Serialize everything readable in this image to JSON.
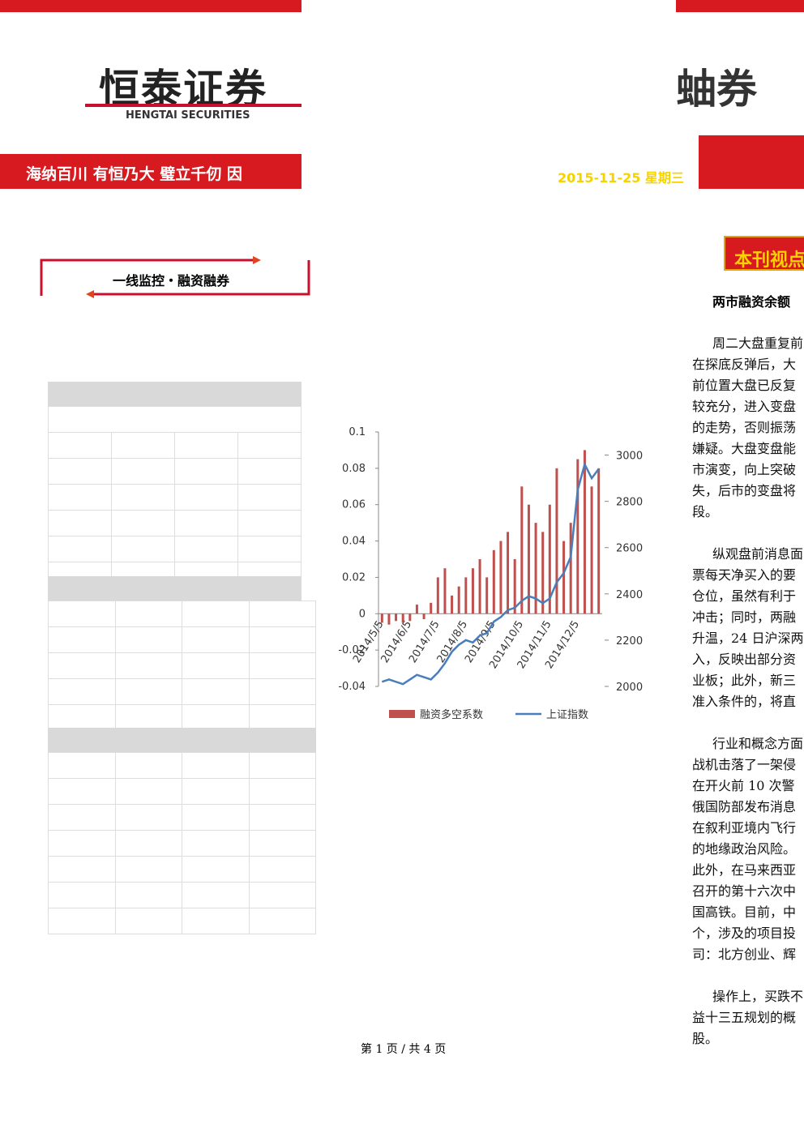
{
  "header": {
    "logo": "恒泰证券",
    "logo_en": "HENGTAI SECURITIES",
    "slogan": "海纳百川 有恒乃大 璧立千仞 因",
    "logo_right": "蚰券",
    "date": "2015-11-25 星期三"
  },
  "section": {
    "label": "一线监控・融资融券"
  },
  "sidebar": {
    "title": "本刊视点",
    "headline": "两市融资余额"
  },
  "body": {
    "paragraphs": [
      [
        "周二大盘重复前",
        "在探底反弹后，大",
        "前位置大盘已反复",
        "较充分，进入变盘",
        "的走势，否则振荡",
        "嫌疑。大盘变盘能",
        "市演变，向上突破",
        "失，后市的变盘将",
        "段。"
      ],
      [
        "纵观盘前消息面",
        "票每天净买入的要",
        "仓位，虽然有利于",
        "冲击；同时，两融",
        "升温，24 日沪深两",
        "入，反映出部分资",
        "业板；此外，新三",
        "准入条件的，将直"
      ],
      [
        "行业和概念方面",
        "战机击落了一架侵",
        "在开火前 10 次警",
        "俄国防部发布消息",
        "在叙利亚境内飞行",
        "的地缘政治风险。",
        "此外，在马来西亚",
        "召开的第十六次中",
        "国高铁。目前，中",
        "个，涉及的项目投",
        "司：北方创业、辉"
      ],
      [
        "操作上，买跌不",
        "益十三五规划的概",
        "股。"
      ]
    ]
  },
  "chart_data": {
    "type": "bar",
    "categories": [
      "2014/5/5",
      null,
      null,
      null,
      "2014/6/5",
      null,
      null,
      null,
      "2014/7/5",
      null,
      null,
      null,
      "2014/8/5",
      null,
      null,
      null,
      "2014/9/5",
      null,
      null,
      null,
      "2014/10/5",
      null,
      null,
      null,
      "2014/11/5",
      null,
      null,
      null,
      "2014/12/5",
      null,
      null,
      null
    ],
    "series": [
      {
        "name": "融资多空系数",
        "color": "#c0504d",
        "values": [
          -0.005,
          -0.006,
          -0.004,
          -0.005,
          -0.004,
          0.005,
          -0.003,
          0.006,
          0.02,
          0.025,
          0.01,
          0.015,
          0.02,
          0.025,
          0.03,
          0.02,
          0.035,
          0.04,
          0.045,
          0.03,
          0.07,
          0.06,
          0.05,
          0.045,
          0.06,
          0.08,
          0.04,
          0.05,
          0.085,
          0.09,
          0.07,
          0.08
        ]
      },
      {
        "name": "上证指数",
        "color": "#4a7ebb",
        "axis": "y2",
        "values": [
          2020,
          2030,
          2020,
          2010,
          2030,
          2050,
          2040,
          2030,
          2060,
          2100,
          2150,
          2180,
          2200,
          2190,
          2220,
          2230,
          2280,
          2300,
          2330,
          2340,
          2370,
          2390,
          2380,
          2360,
          2380,
          2450,
          2490,
          2560,
          2850,
          2960,
          2900,
          2940
        ]
      }
    ],
    "ylim": [
      -0.04,
      0.1
    ],
    "yticks": [
      -0.04,
      -0.02,
      0,
      0.02,
      0.04,
      0.06,
      0.08,
      0.1
    ],
    "y2lim": [
      2000,
      3100
    ],
    "y2ticks": [
      2000,
      2200,
      2400,
      2600,
      2800,
      3000
    ]
  },
  "footer": {
    "page": "第 1 页 / 共 4 页"
  }
}
